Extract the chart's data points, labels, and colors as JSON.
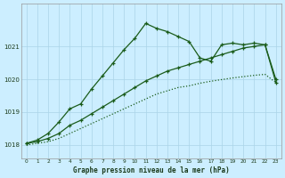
{
  "title": "Graphe pression niveau de la mer (hPa)",
  "background_color": "#cceeff",
  "line_color": "#1a5c1a",
  "grid_color": "#aad4e8",
  "xlim": [
    -0.5,
    23.5
  ],
  "ylim": [
    1017.6,
    1022.3
  ],
  "yticks": [
    1018,
    1019,
    1020,
    1021
  ],
  "xticks": [
    0,
    1,
    2,
    3,
    4,
    5,
    6,
    7,
    8,
    9,
    10,
    11,
    12,
    13,
    14,
    15,
    16,
    17,
    18,
    19,
    20,
    21,
    22,
    23
  ],
  "series": [
    {
      "x": [
        0,
        1,
        2,
        3,
        4,
        5,
        6,
        7,
        8,
        9,
        10,
        11,
        12,
        13,
        14,
        15,
        16,
        17,
        18,
        19,
        20,
        21,
        22,
        23
      ],
      "y": [
        1018.05,
        1018.15,
        1018.35,
        1018.7,
        1019.1,
        1019.25,
        1019.7,
        1020.1,
        1020.5,
        1020.9,
        1021.25,
        1021.7,
        1021.55,
        1021.45,
        1021.3,
        1021.15,
        1020.65,
        1020.55,
        1021.05,
        1021.1,
        1021.05,
        1021.1,
        1021.05,
        1019.9
      ],
      "style": "solid",
      "marker": true
    },
    {
      "x": [
        0,
        1,
        2,
        3,
        4,
        5,
        6,
        7,
        8,
        9,
        10,
        11,
        12,
        13,
        14,
        15,
        16,
        17,
        18,
        19,
        20,
        21,
        22,
        23
      ],
      "y": [
        1018.05,
        1018.1,
        1018.2,
        1018.35,
        1018.6,
        1018.75,
        1018.95,
        1019.15,
        1019.35,
        1019.55,
        1019.75,
        1019.95,
        1020.1,
        1020.25,
        1020.35,
        1020.45,
        1020.55,
        1020.65,
        1020.75,
        1020.85,
        1020.95,
        1021.0,
        1021.05,
        1020.0
      ],
      "style": "solid",
      "marker": true
    },
    {
      "x": [
        0,
        1,
        2,
        3,
        4,
        5,
        6,
        7,
        8,
        9,
        10,
        11,
        12,
        13,
        14,
        15,
        16,
        17,
        18,
        19,
        20,
        21,
        22,
        23
      ],
      "y": [
        1018.0,
        1018.05,
        1018.1,
        1018.2,
        1018.35,
        1018.5,
        1018.65,
        1018.8,
        1018.95,
        1019.1,
        1019.25,
        1019.4,
        1019.55,
        1019.65,
        1019.75,
        1019.8,
        1019.88,
        1019.94,
        1019.99,
        1020.04,
        1020.08,
        1020.12,
        1020.15,
        1019.9
      ],
      "style": "dotted",
      "marker": false
    }
  ]
}
